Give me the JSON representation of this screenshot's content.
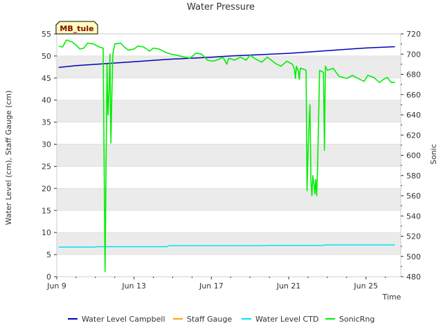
{
  "chart_data": {
    "type": "line",
    "title": "Water Pressure",
    "site_label": "MB_tule",
    "xlabel": "Time",
    "ylabel_left": "Water Level (cm), Staff Gauge (cm)",
    "ylabel_right": "Sonic",
    "xlim": [
      9,
      26.8
    ],
    "ylim_left": [
      0,
      55
    ],
    "ylim_right": [
      480,
      720
    ],
    "x_ticks": [
      {
        "value": 9,
        "label": "Jun 9"
      },
      {
        "value": 13,
        "label": "Jun 13"
      },
      {
        "value": 17,
        "label": "Jun 17"
      },
      {
        "value": 21,
        "label": "Jun 21"
      },
      {
        "value": 25,
        "label": "Jun 25"
      }
    ],
    "y_ticks_left": [
      0,
      5,
      10,
      15,
      20,
      25,
      30,
      35,
      40,
      45,
      50,
      55
    ],
    "y_ticks_right": [
      480,
      500,
      520,
      540,
      560,
      580,
      600,
      620,
      640,
      660,
      680,
      700,
      720
    ],
    "legend": [
      "Water Level Campbell",
      "Staff Gauge",
      "Water Level CTD",
      "SonicRng"
    ],
    "colors": {
      "Water Level Campbell": "#0000bb",
      "Staff Gauge": "#ffa500",
      "Water Level CTD": "#00e5ee",
      "SonicRng": "#00ee00",
      "band": "#ebebeb",
      "site_label_bg": "#ffffc0",
      "site_label_text": "#8b0000"
    },
    "series": [
      {
        "name": "Water Level Campbell",
        "axis": "left",
        "points": [
          [
            9.1,
            47.4
          ],
          [
            10,
            47.8
          ],
          [
            11,
            48.1
          ],
          [
            12,
            48.4
          ],
          [
            13,
            48.7
          ],
          [
            14,
            49.0
          ],
          [
            15,
            49.3
          ],
          [
            16,
            49.5
          ],
          [
            17,
            49.7
          ],
          [
            18,
            50.0
          ],
          [
            19,
            50.2
          ],
          [
            20,
            50.4
          ],
          [
            21,
            50.6
          ],
          [
            22,
            50.9
          ],
          [
            23,
            51.2
          ],
          [
            24,
            51.5
          ],
          [
            25,
            51.8
          ],
          [
            26,
            52.0
          ],
          [
            26.5,
            52.1
          ]
        ]
      },
      {
        "name": "Staff Gauge",
        "axis": "left",
        "points": []
      },
      {
        "name": "Water Level CTD",
        "axis": "left",
        "points": [
          [
            9.1,
            6.7
          ],
          [
            11,
            6.7
          ],
          [
            11.1,
            6.8
          ],
          [
            14.7,
            6.8
          ],
          [
            14.8,
            7.0
          ],
          [
            19.8,
            7.0
          ],
          [
            19.9,
            7.1
          ],
          [
            22.8,
            7.1
          ],
          [
            22.9,
            7.2
          ],
          [
            26.5,
            7.2
          ]
        ]
      },
      {
        "name": "SonicRng",
        "axis": "right",
        "points": [
          [
            9.1,
            708
          ],
          [
            9.3,
            707
          ],
          [
            9.5,
            714
          ],
          [
            9.8,
            712
          ],
          [
            10.0,
            709
          ],
          [
            10.2,
            705
          ],
          [
            10.4,
            706
          ],
          [
            10.6,
            711
          ],
          [
            10.9,
            710
          ],
          [
            11.2,
            707
          ],
          [
            11.4,
            706
          ],
          [
            11.45,
            595
          ],
          [
            11.5,
            485
          ],
          [
            11.55,
            590
          ],
          [
            11.6,
            690
          ],
          [
            11.65,
            640
          ],
          [
            11.7,
            660
          ],
          [
            11.75,
            700
          ],
          [
            11.8,
            612
          ],
          [
            11.85,
            660
          ],
          [
            11.9,
            700
          ],
          [
            12.0,
            710
          ],
          [
            12.3,
            711
          ],
          [
            12.5,
            707
          ],
          [
            12.7,
            704
          ],
          [
            13.0,
            705
          ],
          [
            13.2,
            708
          ],
          [
            13.5,
            707
          ],
          [
            13.8,
            703
          ],
          [
            14.0,
            706
          ],
          [
            14.3,
            705
          ],
          [
            14.6,
            702
          ],
          [
            14.9,
            700
          ],
          [
            15.2,
            699
          ],
          [
            15.6,
            697
          ],
          [
            15.9,
            696
          ],
          [
            16.2,
            701
          ],
          [
            16.5,
            700
          ],
          [
            16.8,
            694
          ],
          [
            17.1,
            693
          ],
          [
            17.4,
            695
          ],
          [
            17.6,
            697
          ],
          [
            17.8,
            690
          ],
          [
            17.9,
            696
          ],
          [
            18.2,
            694
          ],
          [
            18.5,
            697
          ],
          [
            18.8,
            694
          ],
          [
            19.0,
            699
          ],
          [
            19.3,
            695
          ],
          [
            19.6,
            692
          ],
          [
            19.9,
            697
          ],
          [
            20.1,
            694
          ],
          [
            20.3,
            691
          ],
          [
            20.6,
            688
          ],
          [
            20.9,
            693
          ],
          [
            21.2,
            690
          ],
          [
            21.3,
            685
          ],
          [
            21.35,
            676
          ],
          [
            21.4,
            688
          ],
          [
            21.5,
            683
          ],
          [
            21.55,
            675
          ],
          [
            21.6,
            686
          ],
          [
            21.8,
            685
          ],
          [
            21.9,
            684
          ],
          [
            21.95,
            565
          ],
          [
            22.0,
            603
          ],
          [
            22.05,
            630
          ],
          [
            22.1,
            650
          ],
          [
            22.15,
            575
          ],
          [
            22.2,
            560
          ],
          [
            22.25,
            580
          ],
          [
            22.3,
            572
          ],
          [
            22.35,
            562
          ],
          [
            22.4,
            576
          ],
          [
            22.45,
            560
          ],
          [
            22.5,
            590
          ],
          [
            22.6,
            684
          ],
          [
            22.8,
            682
          ],
          [
            22.85,
            605
          ],
          [
            22.9,
            688
          ],
          [
            23.0,
            684
          ],
          [
            23.3,
            686
          ],
          [
            23.6,
            678
          ],
          [
            24.0,
            676
          ],
          [
            24.3,
            679
          ],
          [
            24.6,
            676
          ],
          [
            24.9,
            673
          ],
          [
            25.1,
            679
          ],
          [
            25.4,
            677
          ],
          [
            25.7,
            672
          ],
          [
            25.9,
            675
          ],
          [
            26.1,
            677
          ],
          [
            26.3,
            672
          ],
          [
            26.5,
            672
          ]
        ]
      }
    ]
  }
}
